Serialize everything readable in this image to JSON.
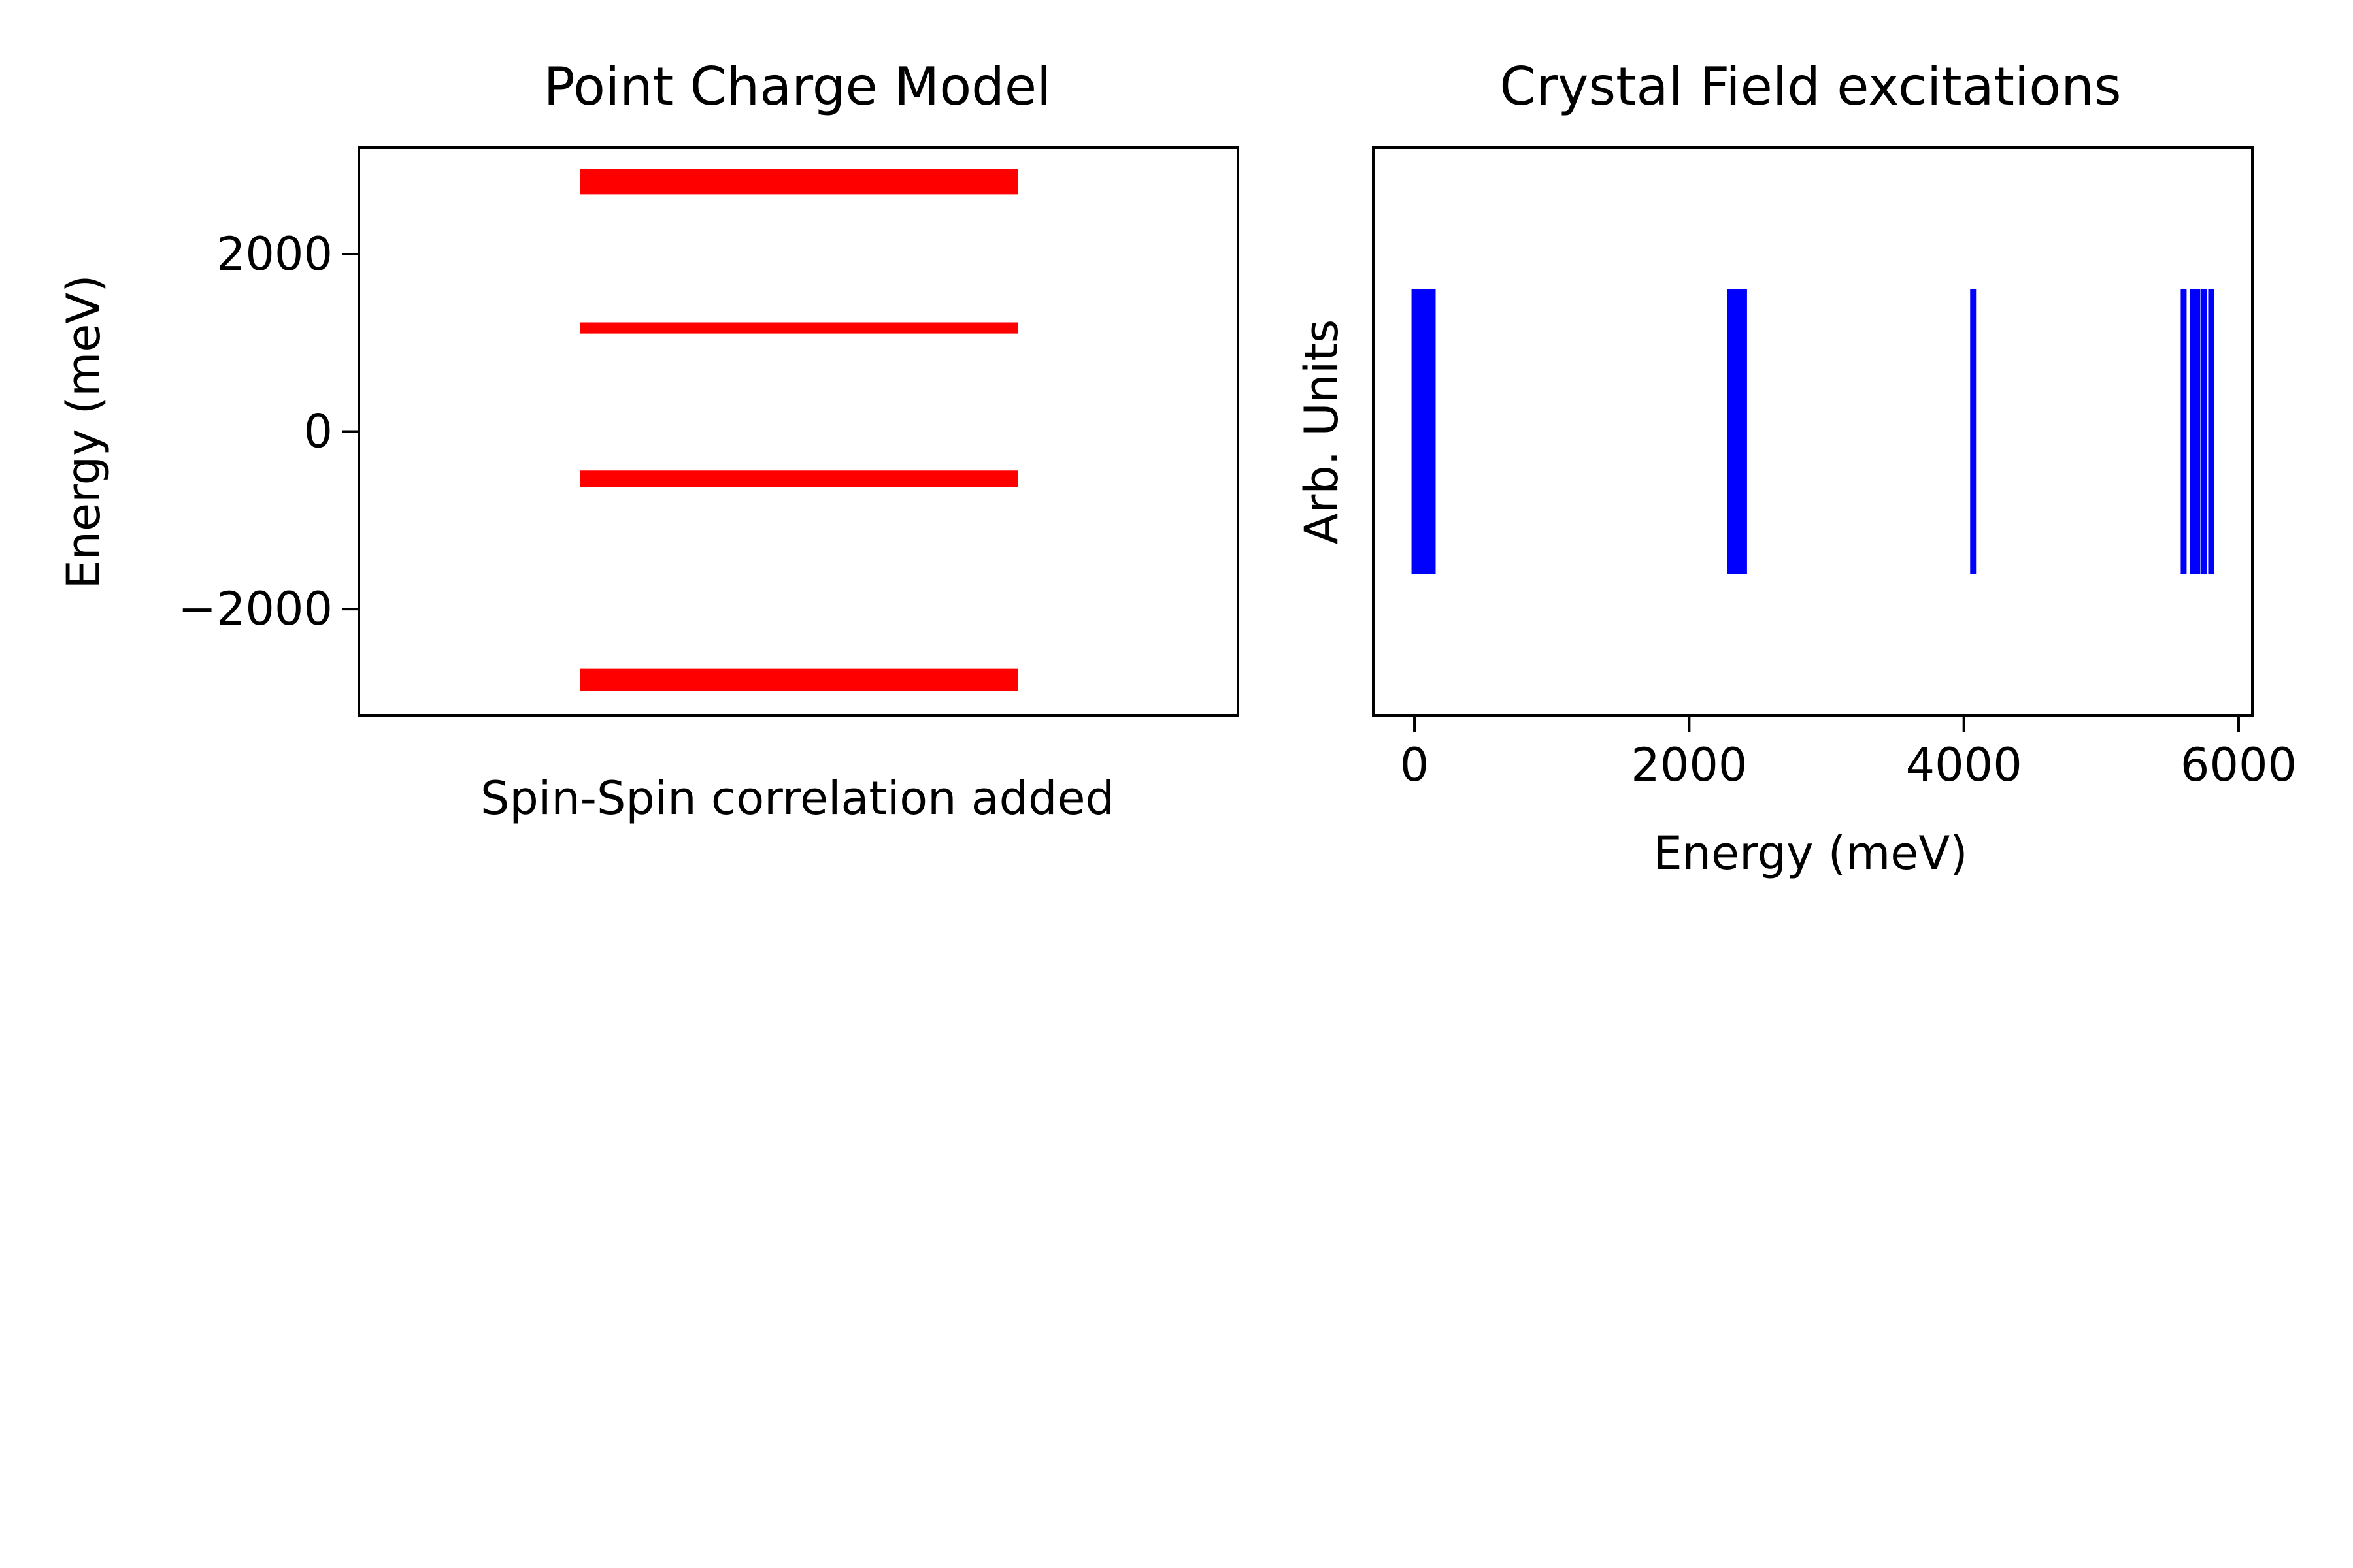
{
  "chart_data": [
    {
      "type": "eventplot",
      "title": "Point Charge Model",
      "xlabel": "Spin-Spin correlation added",
      "ylabel": "Energy (meV)",
      "ylim": [
        -3200,
        3200
      ],
      "yticks": [
        -2000,
        0,
        2000
      ],
      "ytick_labels": [
        "−2000",
        "0",
        "2000"
      ],
      "xticks_visible": false,
      "color": "#ff0000",
      "levels": [
        {
          "energy": -2833,
          "degeneracy": 3
        },
        {
          "energy": -2767,
          "degeneracy": 3
        },
        {
          "energy": -533,
          "degeneracy": 3
        },
        {
          "energy": 1167,
          "degeneracy": 2
        },
        {
          "energy": 2767,
          "degeneracy": 3
        },
        {
          "energy": 2867,
          "degeneracy": 3
        }
      ]
    },
    {
      "type": "eventplot",
      "title": "Crystal Field excitations",
      "xlabel": "Energy (meV)",
      "ylabel": "Arb. Units",
      "xlim": [
        -300,
        6100
      ],
      "xticks": [
        0,
        2000,
        4000,
        6000
      ],
      "xtick_labels": [
        "0",
        "2000",
        "4000",
        "6000"
      ],
      "yticks_visible": false,
      "color": "#0000ff",
      "energies": [
        0,
        33,
        67,
        100,
        133,
        2300,
        2333,
        2367,
        2400,
        4067,
        5600,
        5667,
        5700,
        5750,
        5800
      ]
    }
  ]
}
